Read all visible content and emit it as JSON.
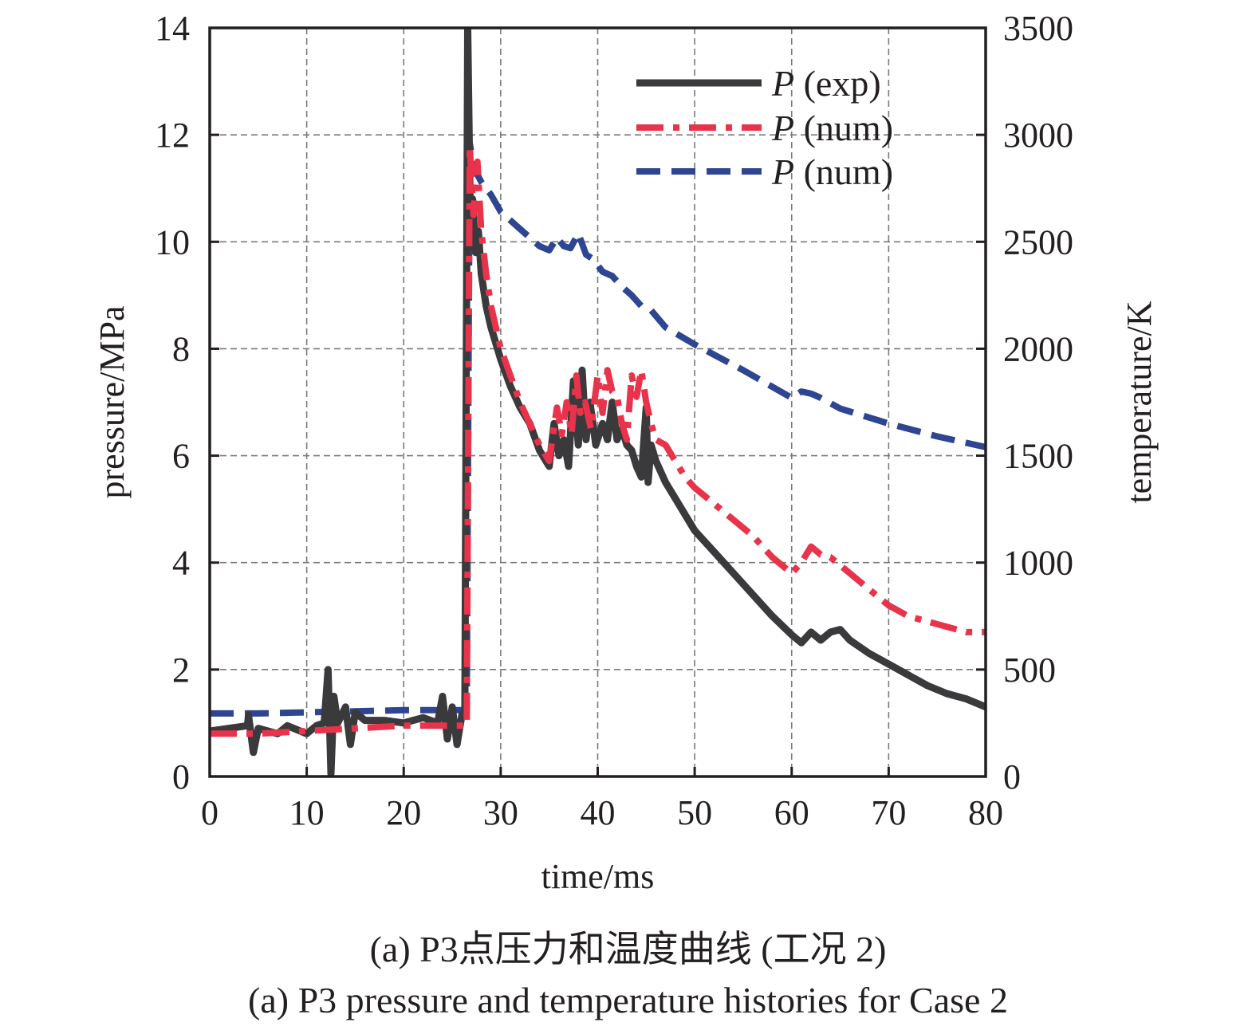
{
  "chart_data": {
    "type": "line",
    "xlabel": "time/ms",
    "ylabel": "pressure/MPa",
    "y2label": "temperature/K",
    "xlim": [
      0,
      80
    ],
    "ylim": [
      0,
      14
    ],
    "y2lim": [
      0,
      3500
    ],
    "x_ticks": [
      "0",
      "10",
      "20",
      "30",
      "40",
      "50",
      "60",
      "70",
      "80"
    ],
    "y_ticks": [
      "0",
      "2",
      "4",
      "6",
      "8",
      "10",
      "12",
      "14"
    ],
    "y2_ticks": [
      "0",
      "500",
      "1000",
      "1500",
      "2000",
      "2500",
      "3000",
      "3500"
    ],
    "grid": true,
    "legend_position": "top-right",
    "series": [
      {
        "name": "P (exp)",
        "name_italic": "P",
        "name_rest": " (exp)",
        "axis": "left",
        "color": "#3a3a3c",
        "style": "solid",
        "x": [
          0,
          2,
          3.9,
          4,
          4.5,
          5,
          7,
          8,
          10,
          11,
          11.8,
          12.2,
          12.5,
          12.8,
          13.2,
          14,
          14.5,
          15,
          16,
          18,
          20,
          22,
          23.5,
          24,
          24.5,
          25,
          25.5,
          26,
          26.3,
          26.6,
          26.9,
          27.1,
          27.4,
          27.7,
          28,
          28.5,
          29,
          30,
          31,
          32,
          33,
          34,
          35,
          35.5,
          36,
          36.5,
          37,
          37.5,
          38,
          38.4,
          38.8,
          39.2,
          39.8,
          40.5,
          41,
          41.5,
          42,
          42.5,
          43,
          43.5,
          44,
          44.5,
          45,
          45.2,
          45.5,
          46,
          47,
          48,
          50,
          52,
          54,
          56,
          58,
          60,
          61,
          62,
          63,
          64,
          65,
          66,
          68,
          70,
          72,
          74,
          76,
          78,
          80
        ],
        "y": [
          0.85,
          0.9,
          0.95,
          1.15,
          0.45,
          0.9,
          0.8,
          0.95,
          0.8,
          0.95,
          1.0,
          2.0,
          0.05,
          1.5,
          1.0,
          1.3,
          0.6,
          1.2,
          1.05,
          1.05,
          1.0,
          1.1,
          1.0,
          1.5,
          0.7,
          1.3,
          0.6,
          1.15,
          1.2,
          14,
          9.9,
          10.8,
          9.8,
          10.2,
          9.4,
          8.8,
          8.4,
          7.8,
          7.3,
          6.9,
          6.6,
          6.1,
          5.8,
          6.6,
          6.0,
          6.3,
          5.8,
          7.4,
          6.2,
          7.6,
          6.3,
          7.0,
          6.2,
          6.6,
          6.3,
          7.0,
          6.3,
          6.5,
          6.2,
          6.1,
          5.8,
          5.6,
          6.9,
          5.5,
          6.2,
          5.9,
          5.5,
          5.2,
          4.6,
          4.2,
          3.8,
          3.4,
          3.0,
          2.65,
          2.5,
          2.7,
          2.55,
          2.7,
          2.75,
          2.55,
          2.3,
          2.1,
          1.9,
          1.7,
          1.55,
          1.45,
          1.3
        ]
      },
      {
        "name": "P (num)",
        "name_italic": "P",
        "name_rest": " (num)",
        "axis": "left",
        "color": "#e8334a",
        "style": "dashdot",
        "x": [
          0,
          5,
          10,
          15,
          20,
          25,
          26.5,
          26.8,
          27.2,
          27.6,
          28,
          28.5,
          29,
          30,
          31,
          32,
          33,
          34,
          35,
          35.8,
          36.3,
          36.8,
          37.3,
          37.8,
          38.2,
          38.7,
          39.3,
          40,
          40.5,
          41,
          41.5,
          42,
          42.5,
          43,
          43.5,
          44,
          44.5,
          45,
          45.5,
          46,
          47,
          48,
          49,
          50,
          52,
          54,
          56,
          58,
          60,
          61,
          62,
          63,
          64,
          66,
          68,
          70,
          72,
          74,
          76,
          78,
          80
        ],
        "y": [
          0.8,
          0.8,
          0.85,
          0.9,
          0.95,
          0.95,
          0.95,
          11.8,
          10.5,
          11.5,
          10.2,
          9.4,
          8.8,
          8.0,
          7.5,
          7.0,
          6.6,
          6.2,
          5.9,
          6.9,
          6.4,
          7.0,
          6.4,
          7.5,
          6.8,
          7.0,
          6.5,
          7.5,
          6.8,
          7.6,
          7.2,
          7.1,
          6.6,
          6.3,
          7.5,
          7.1,
          7.6,
          7.0,
          6.6,
          6.3,
          6.2,
          5.9,
          5.6,
          5.4,
          5.1,
          4.8,
          4.5,
          4.1,
          3.8,
          4.0,
          4.3,
          4.15,
          4.1,
          3.8,
          3.5,
          3.2,
          3.0,
          2.9,
          2.8,
          2.7,
          2.7
        ]
      },
      {
        "name": "P (num)",
        "name_italic": "P",
        "name_rest": " (num)",
        "axis": "right",
        "color": "#2e4592",
        "style": "dashed",
        "x": [
          0,
          5,
          10,
          15,
          20,
          25,
          26.5,
          26.8,
          27.3,
          28,
          29,
          30,
          32,
          34,
          35,
          35.8,
          36.5,
          37.2,
          38,
          38.8,
          39.5,
          40.5,
          41.5,
          42.5,
          43.5,
          44.5,
          45.5,
          47,
          50,
          55,
          60,
          61,
          62,
          63,
          65,
          70,
          75,
          80
        ],
        "y": [
          295,
          295,
          300,
          305,
          310,
          310,
          310,
          2960,
          2840,
          2780,
          2720,
          2640,
          2560,
          2480,
          2460,
          2520,
          2480,
          2470,
          2540,
          2440,
          2420,
          2360,
          2340,
          2290,
          2250,
          2200,
          2180,
          2100,
          2020,
          1900,
          1770,
          1800,
          1790,
          1770,
          1720,
          1650,
          1590,
          1540
        ]
      }
    ]
  },
  "captions": {
    "cn": "(a) P3点压力和温度曲线 (工况 2)",
    "en": "(a) P3 pressure and temperature histories for Case 2"
  }
}
